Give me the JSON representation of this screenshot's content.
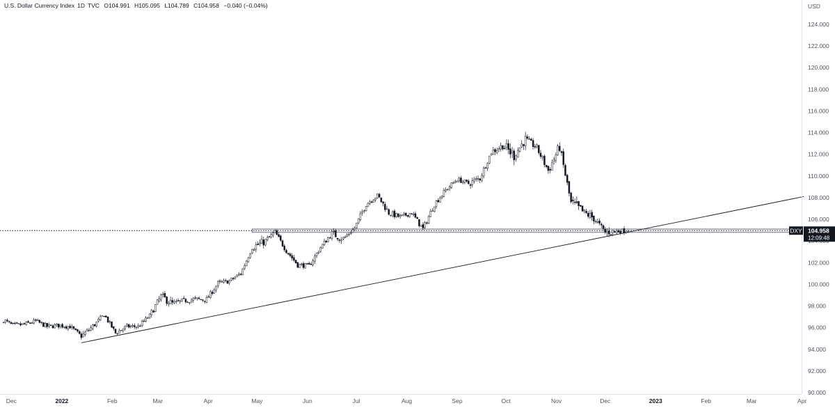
{
  "legend": {
    "symbol_name": "U.S. Dollar Currency Index",
    "interval": "1D",
    "exchange": "TVC",
    "open": "O104.991",
    "high": "H105.095",
    "low": "L104.789",
    "close": "C104.958",
    "change": "−0.040 (−0.04%)"
  },
  "price_axis": {
    "currency": "USD",
    "ticks": [
      "124.000",
      "122.000",
      "120.000",
      "118.000",
      "116.000",
      "114.000",
      "112.000",
      "110.000",
      "108.000",
      "106.000",
      "104.000",
      "102.000",
      "100.000",
      "98.000",
      "96.000",
      "94.000",
      "92.000",
      "90.000"
    ]
  },
  "time_axis": {
    "labels": [
      "Dec",
      "2022",
      "Feb",
      "Mar",
      "Apr",
      "May",
      "Jun",
      "Jul",
      "Aug",
      "Sep",
      "Oct",
      "Nov",
      "Dec",
      "2023",
      "Feb",
      "Mar",
      "Apr"
    ]
  },
  "last_price": {
    "ticker": "DXY",
    "price": "104.958",
    "countdown": "12:09:48",
    "value": 104.958
  },
  "colors": {
    "candle": "#131722",
    "background": "#ffffff",
    "line": "#131722",
    "rect_stroke": "#6b6b82",
    "label_bg": "#131722",
    "label_text": "#ffffff",
    "axis_text": "#50535e"
  },
  "chart_data": {
    "type": "candlestick",
    "ylim": [
      90,
      125
    ],
    "log_scale": false,
    "grid": false,
    "x_range": [
      "2021-11-24",
      "2023-04-02"
    ],
    "candles_approx": [
      [
        "2021-11-25",
        96.4,
        96.9,
        96.1,
        96.8
      ],
      [
        "2021-12-02",
        96.1,
        96.4,
        95.9,
        96.2
      ],
      [
        "2021-12-09",
        96.2,
        96.5,
        95.9,
        96.3
      ],
      [
        "2021-12-16",
        96.5,
        96.8,
        96.2,
        96.6
      ],
      [
        "2021-12-23",
        96.5,
        96.6,
        96.0,
        96.1
      ],
      [
        "2021-12-30",
        96.0,
        96.3,
        95.7,
        96.2
      ],
      [
        "2022-01-06",
        96.2,
        96.4,
        95.8,
        96.1
      ],
      [
        "2022-01-13",
        95.5,
        96.0,
        94.6,
        95.2
      ],
      [
        "2022-01-20",
        95.6,
        96.4,
        95.4,
        96.1
      ],
      [
        "2022-01-27",
        96.9,
        97.4,
        96.6,
        97.2
      ],
      [
        "2022-02-03",
        95.8,
        96.2,
        95.2,
        95.5
      ],
      [
        "2022-02-10",
        95.9,
        96.3,
        95.4,
        96.1
      ],
      [
        "2022-02-17",
        95.8,
        96.3,
        95.6,
        96.1
      ],
      [
        "2022-02-24",
        96.6,
        97.5,
        96.1,
        97.1
      ],
      [
        "2022-03-03",
        97.8,
        99.3,
        97.6,
        98.9
      ],
      [
        "2022-03-10",
        98.6,
        99.0,
        97.9,
        98.2
      ],
      [
        "2022-03-17",
        98.3,
        98.9,
        97.7,
        98.5
      ],
      [
        "2022-03-24",
        98.8,
        99.4,
        98.2,
        98.6
      ],
      [
        "2022-03-31",
        98.3,
        98.9,
        97.8,
        98.6
      ],
      [
        "2022-04-07",
        99.8,
        100.3,
        99.4,
        100.1
      ],
      [
        "2022-04-14",
        100.0,
        100.5,
        99.7,
        100.3
      ],
      [
        "2022-04-21",
        100.6,
        101.3,
        100.2,
        101.0
      ],
      [
        "2022-04-28",
        102.5,
        103.9,
        102.2,
        103.4
      ],
      [
        "2022-05-05",
        103.6,
        104.2,
        103.1,
        103.9
      ],
      [
        "2022-05-12",
        104.3,
        105.0,
        103.9,
        104.8
      ],
      [
        "2022-05-19",
        103.6,
        103.9,
        102.7,
        103.1
      ],
      [
        "2022-05-26",
        102.0,
        102.5,
        101.6,
        101.8
      ],
      [
        "2022-06-02",
        102.0,
        102.4,
        101.3,
        101.7
      ],
      [
        "2022-06-09",
        102.8,
        103.6,
        102.5,
        103.4
      ],
      [
        "2022-06-16",
        104.8,
        105.8,
        104.0,
        104.7
      ],
      [
        "2022-06-23",
        104.4,
        104.8,
        103.8,
        104.2
      ],
      [
        "2022-06-30",
        104.8,
        105.6,
        104.4,
        105.2
      ],
      [
        "2022-07-07",
        107.1,
        107.8,
        106.8,
        107.4
      ],
      [
        "2022-07-14",
        108.4,
        109.3,
        107.9,
        108.2
      ],
      [
        "2022-07-21",
        107.0,
        107.5,
        106.3,
        106.6
      ],
      [
        "2022-07-28",
        106.3,
        106.8,
        105.8,
        106.2
      ],
      [
        "2022-08-04",
        106.2,
        106.8,
        105.6,
        106.6
      ],
      [
        "2022-08-11",
        105.2,
        105.8,
        104.6,
        105.1
      ],
      [
        "2022-08-18",
        107.1,
        107.7,
        106.6,
        107.4
      ],
      [
        "2022-08-25",
        108.3,
        108.9,
        107.9,
        108.7
      ],
      [
        "2022-09-01",
        109.5,
        110.0,
        109.0,
        109.7
      ],
      [
        "2022-09-08",
        109.0,
        109.8,
        108.3,
        109.3
      ],
      [
        "2022-09-15",
        109.5,
        110.2,
        109.0,
        109.8
      ],
      [
        "2022-09-22",
        111.3,
        112.5,
        111.0,
        112.2
      ],
      [
        "2022-09-29",
        114.0,
        114.8,
        112.3,
        112.8
      ],
      [
        "2022-10-06",
        111.4,
        112.2,
        110.2,
        111.9
      ],
      [
        "2022-10-13",
        113.0,
        113.9,
        112.5,
        113.4
      ],
      [
        "2022-10-20",
        112.3,
        113.2,
        111.5,
        112.6
      ],
      [
        "2022-10-27",
        111.0,
        111.8,
        109.6,
        110.5
      ],
      [
        "2022-11-03",
        112.3,
        113.0,
        111.4,
        112.7
      ],
      [
        "2022-11-10",
        108.6,
        109.3,
        106.7,
        107.5
      ],
      [
        "2022-11-17",
        106.8,
        107.6,
        105.8,
        106.7
      ],
      [
        "2022-11-24",
        106.0,
        106.9,
        105.4,
        106.1
      ],
      [
        "2022-12-01",
        105.1,
        105.8,
        104.2,
        104.8
      ],
      [
        "2022-12-08",
        104.8,
        105.3,
        104.5,
        104.9
      ],
      [
        "2022-12-15",
        104.99,
        105.1,
        104.79,
        104.96
      ]
    ],
    "trendline_approx": {
      "from": [
        "2022-01-13",
        94.6
      ],
      "to": [
        "2023-04-02",
        108.1
      ]
    },
    "horizontal_zone_approx": {
      "from_date": "2022-04-28",
      "low": 104.8,
      "high": 105.1
    },
    "last_price_line": 104.958
  }
}
